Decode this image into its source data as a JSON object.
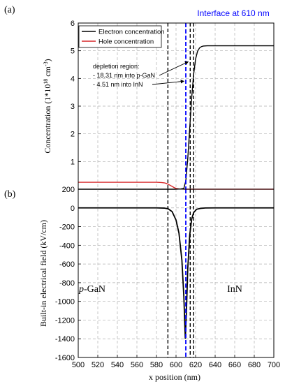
{
  "panel_labels": {
    "top": "(a)",
    "bottom": "(b)"
  },
  "interface_label": "Interface at 610 nm",
  "annotation": {
    "line1": "depletion region:",
    "line2": "- 18.31 nm into p-GaN",
    "line3": "- 4.51 nm into InN"
  },
  "materials": {
    "left_italic": "p",
    "left_rest": "-GaN",
    "right": "InN"
  },
  "colors": {
    "electron": "#000000",
    "hole": "#d62728",
    "interface": "#0000ff",
    "grid": "#b0b0b0"
  },
  "chart_data": [
    {
      "type": "line",
      "title": "",
      "xlabel": "",
      "ylabel": "Concentration (1*10^18 cm^-3)",
      "ylabel_parts": {
        "pre": "Concentration (1*10",
        "exp1": "18",
        "mid": " cm",
        "exp2": "-3",
        "post": ")"
      },
      "xlim": [
        500,
        700
      ],
      "ylim": [
        0,
        6
      ],
      "yticks": [
        0,
        1,
        2,
        3,
        4,
        5,
        6
      ],
      "grid": true,
      "legend_position": "top-left",
      "series": [
        {
          "name": "Electron concentration",
          "x": [
            500,
            590,
            600,
            605,
            608,
            610,
            612,
            614,
            616,
            618,
            620,
            622,
            624,
            626,
            628,
            632,
            640,
            660,
            700
          ],
          "y": [
            0,
            0,
            0,
            0.01,
            0.03,
            0.3,
            1.1,
            2.2,
            3.3,
            4.15,
            4.7,
            4.98,
            5.1,
            5.15,
            5.17,
            5.18,
            5.18,
            5.18,
            5.18
          ]
        },
        {
          "name": "Hole concentration",
          "x": [
            500,
            570,
            580,
            585,
            588,
            590,
            592,
            594,
            596,
            598,
            600,
            603,
            606,
            610,
            700
          ],
          "y": [
            0.25,
            0.25,
            0.25,
            0.24,
            0.23,
            0.21,
            0.18,
            0.14,
            0.1,
            0.06,
            0.03,
            0.01,
            0.004,
            0,
            0
          ]
        }
      ],
      "vlines_dashed": [
        591.69,
        614.51,
        618
      ]
    },
    {
      "type": "line",
      "title": "",
      "xlabel": "x position (nm)",
      "ylabel": "Built-in electrical field (kV/cm)",
      "xlim": [
        500,
        700
      ],
      "ylim": [
        -1600,
        200
      ],
      "xticks": [
        500,
        520,
        540,
        560,
        580,
        600,
        620,
        640,
        660,
        680,
        700
      ],
      "yticks": [
        200,
        0,
        -200,
        -400,
        -600,
        -800,
        -1000,
        -1200,
        -1400,
        -1600
      ],
      "grid": true,
      "series": [
        {
          "name": "",
          "x": [
            500,
            580,
            588,
            592,
            596,
            600,
            603,
            606,
            608,
            609.5,
            610.5,
            612,
            614,
            616,
            618,
            621,
            625,
            630,
            640,
            700
          ],
          "y": [
            0,
            0,
            -2,
            -10,
            -40,
            -130,
            -270,
            -560,
            -950,
            -1400,
            -1150,
            -650,
            -290,
            -120,
            -50,
            -15,
            -5,
            -1,
            0,
            0
          ]
        }
      ],
      "vlines_dashed": [
        591.69,
        614.51,
        618
      ]
    }
  ]
}
